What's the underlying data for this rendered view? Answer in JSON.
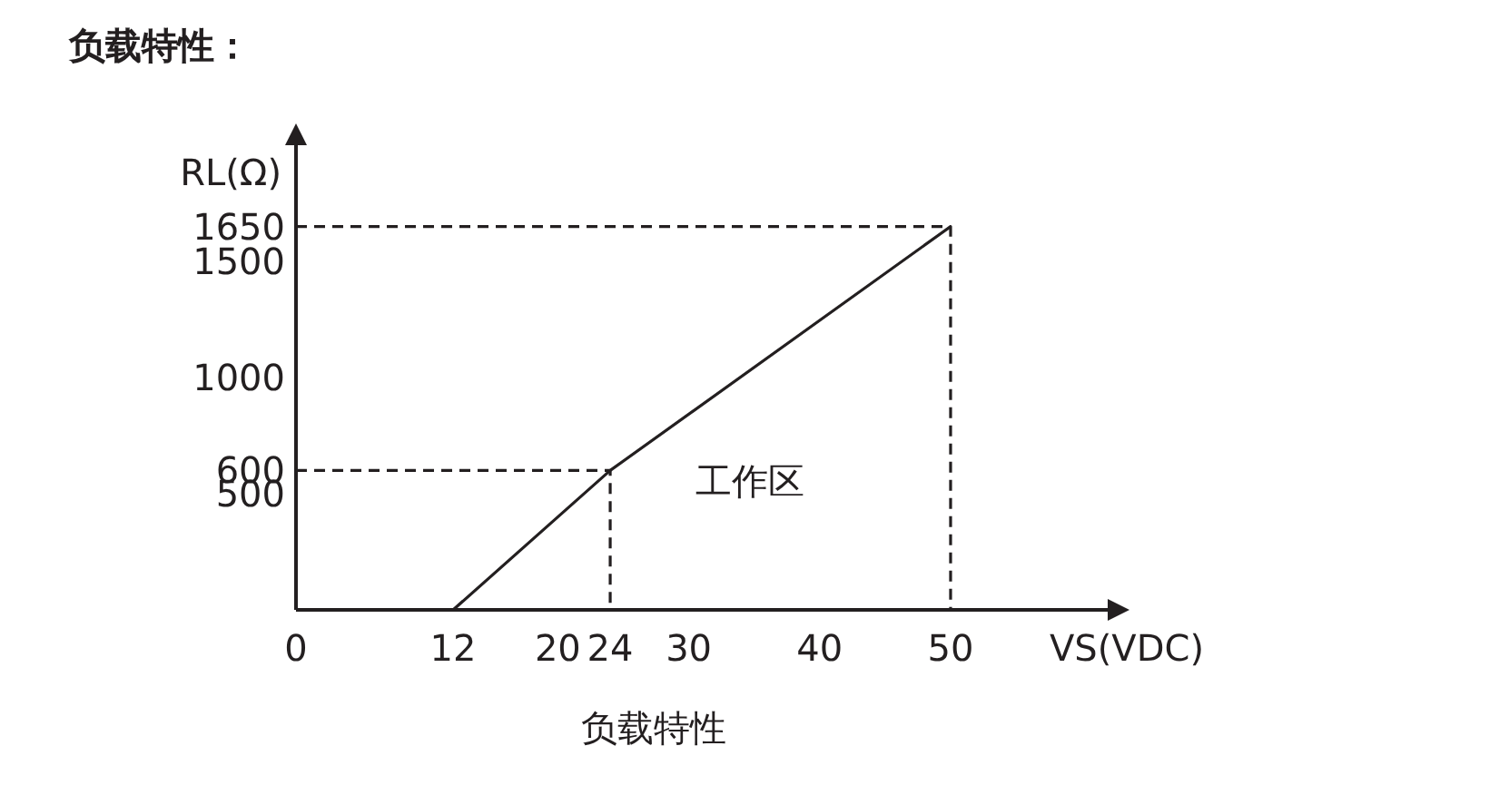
{
  "chart_data": {
    "type": "line",
    "title": "负载特性：",
    "xlabel": "VS(VDC)",
    "ylabel": "RL(Ω)",
    "annotations": [
      "工作区",
      "负载特性"
    ],
    "xlim": [
      0,
      62
    ],
    "ylim": [
      0,
      2000
    ],
    "xticks": [
      0,
      12,
      20,
      24,
      30,
      40,
      50
    ],
    "yticks": [
      500,
      600,
      1000,
      1500,
      1650
    ],
    "grid": false,
    "marker": "none",
    "series": [
      {
        "color": "#231f20",
        "x": [
          12,
          24,
          50
        ],
        "values": [
          0,
          600,
          1650
        ],
        "line_style": "solid"
      },
      {
        "color": "#231f20",
        "x": [
          0,
          24,
          24
        ],
        "values": [
          600,
          600,
          0
        ],
        "line_style": "dashed"
      },
      {
        "color": "#231f20",
        "x": [
          0,
          50,
          50
        ],
        "values": [
          1650,
          1650,
          0
        ],
        "line_style": "dashed"
      }
    ]
  }
}
